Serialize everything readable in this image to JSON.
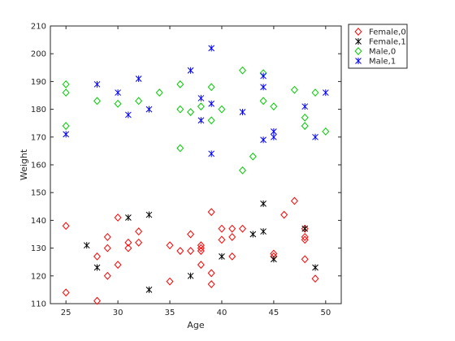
{
  "chart_data": {
    "type": "scatter",
    "xlabel": "Age",
    "ylabel": "Weight",
    "xlim": [
      23.5,
      51.5
    ],
    "ylim": [
      110,
      210
    ],
    "xticks": [
      25,
      30,
      35,
      40,
      45,
      50
    ],
    "yticks": [
      110,
      120,
      130,
      140,
      150,
      160,
      170,
      180,
      190,
      200,
      210
    ],
    "grid": false,
    "legend_position": "outside top-right",
    "series": [
      {
        "name": "Female,0",
        "marker": "diamond-open",
        "color": "#ff0000",
        "points": [
          [
            25,
            138
          ],
          [
            25,
            114
          ],
          [
            28,
            127
          ],
          [
            28,
            111
          ],
          [
            29,
            134
          ],
          [
            29,
            130
          ],
          [
            29,
            120
          ],
          [
            30,
            141
          ],
          [
            30,
            124
          ],
          [
            31,
            132
          ],
          [
            31,
            130
          ],
          [
            32,
            136
          ],
          [
            32,
            132
          ],
          [
            35,
            131
          ],
          [
            35,
            118
          ],
          [
            36,
            129
          ],
          [
            37,
            135
          ],
          [
            37,
            129
          ],
          [
            38,
            131
          ],
          [
            38,
            130
          ],
          [
            38,
            129
          ],
          [
            38,
            124
          ],
          [
            39,
            143
          ],
          [
            39,
            121
          ],
          [
            39,
            117
          ],
          [
            40,
            137
          ],
          [
            40,
            133
          ],
          [
            41,
            137
          ],
          [
            41,
            134
          ],
          [
            41,
            127
          ],
          [
            42,
            137
          ],
          [
            45,
            128
          ],
          [
            45,
            127
          ],
          [
            46,
            142
          ],
          [
            47,
            147
          ],
          [
            48,
            137
          ],
          [
            48,
            134
          ],
          [
            48,
            133
          ],
          [
            48,
            126
          ],
          [
            49,
            119
          ]
        ]
      },
      {
        "name": "Female,1",
        "marker": "asterisk",
        "color": "#000000",
        "points": [
          [
            27,
            131
          ],
          [
            28,
            123
          ],
          [
            31,
            141
          ],
          [
            33,
            142
          ],
          [
            33,
            115
          ],
          [
            37,
            120
          ],
          [
            40,
            127
          ],
          [
            43,
            135
          ],
          [
            44,
            146
          ],
          [
            44,
            136
          ],
          [
            45,
            126
          ],
          [
            48,
            137
          ],
          [
            49,
            123
          ]
        ]
      },
      {
        "name": "Male,0",
        "marker": "diamond-open",
        "color": "#00cc00",
        "points": [
          [
            25,
            189
          ],
          [
            25,
            186
          ],
          [
            25,
            174
          ],
          [
            28,
            183
          ],
          [
            30,
            182
          ],
          [
            32,
            183
          ],
          [
            34,
            186
          ],
          [
            36,
            189
          ],
          [
            36,
            180
          ],
          [
            36,
            166
          ],
          [
            37,
            179
          ],
          [
            38,
            181
          ],
          [
            39,
            188
          ],
          [
            39,
            176
          ],
          [
            40,
            180
          ],
          [
            42,
            194
          ],
          [
            42,
            158
          ],
          [
            43,
            163
          ],
          [
            44,
            193
          ],
          [
            44,
            183
          ],
          [
            45,
            181
          ],
          [
            47,
            187
          ],
          [
            48,
            177
          ],
          [
            48,
            174
          ],
          [
            49,
            186
          ],
          [
            50,
            172
          ]
        ]
      },
      {
        "name": "Male,1",
        "marker": "asterisk",
        "color": "#0000ff",
        "points": [
          [
            25,
            171
          ],
          [
            28,
            189
          ],
          [
            30,
            186
          ],
          [
            31,
            178
          ],
          [
            32,
            191
          ],
          [
            33,
            180
          ],
          [
            37,
            194
          ],
          [
            38,
            184
          ],
          [
            38,
            176
          ],
          [
            39,
            202
          ],
          [
            39,
            182
          ],
          [
            39,
            164
          ],
          [
            42,
            179
          ],
          [
            44,
            192
          ],
          [
            44,
            188
          ],
          [
            44,
            169
          ],
          [
            45,
            172
          ],
          [
            45,
            170
          ],
          [
            48,
            181
          ],
          [
            49,
            170
          ],
          [
            50,
            186
          ]
        ]
      }
    ]
  }
}
